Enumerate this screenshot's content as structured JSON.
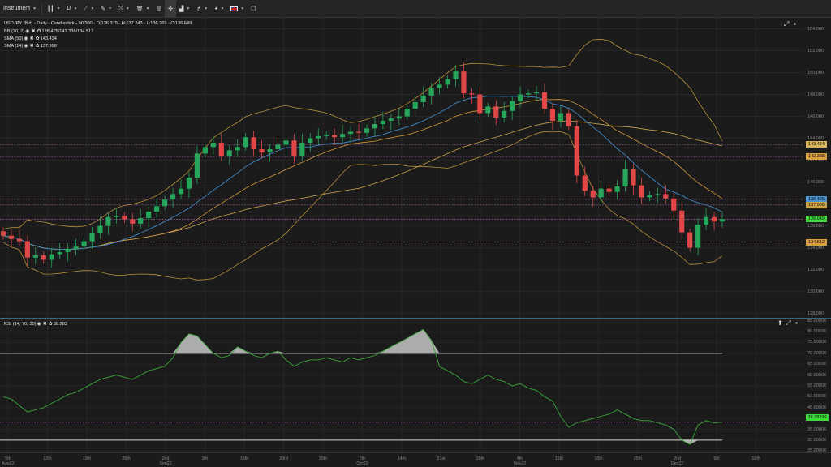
{
  "toolbar": {
    "instrument": "Instrument",
    "timeframe": "D"
  },
  "legend": {
    "title": "USDJPY (Bid) - Daily - Candlestick - 90/200 - O:136.379 - H:137.243 - L:136.269 - C:136.649",
    "bb": "BB (20, 2)",
    "bb_value": "138.425/142.338/134.512",
    "sma50": "SMA (50)",
    "sma50_value": "143.434",
    "sma14": "SMA (14)",
    "sma14_value": "137.906",
    "rsi": "RSI (14, 70, 30)",
    "rsi_value": "38.283"
  },
  "price_axis": [
    "154.000",
    "152.000",
    "150.000",
    "148.000",
    "146.000",
    "144.000",
    "142.000",
    "140.000",
    "138.000",
    "136.000",
    "134.000",
    "132.000",
    "130.000",
    "128.000"
  ],
  "price_badges": {
    "sma50": "143.434",
    "bb_upper": "142.338",
    "bb_mid": "138.425",
    "sma14": "137.906",
    "close": "136.649",
    "bb_lower": "134.512"
  },
  "rsi_axis": [
    "85.00000",
    "80.00000",
    "75.00000",
    "70.00000",
    "65.00000",
    "60.00000",
    "55.00000",
    "50.00000",
    "45.00000",
    "40.00000",
    "35.00000",
    "30.00000",
    "25.00000"
  ],
  "rsi_badge": "38.28299",
  "x_axis": [
    {
      "l1": "5th",
      "l2": "Aug22"
    },
    {
      "l1": "12th",
      "l2": ""
    },
    {
      "l1": "19th",
      "l2": ""
    },
    {
      "l1": "26th",
      "l2": ""
    },
    {
      "l1": "2nd",
      "l2": "Sep22"
    },
    {
      "l1": "9th",
      "l2": ""
    },
    {
      "l1": "16th",
      "l2": ""
    },
    {
      "l1": "23rd",
      "l2": ""
    },
    {
      "l1": "30th",
      "l2": ""
    },
    {
      "l1": "7th",
      "l2": "Oct22"
    },
    {
      "l1": "14th",
      "l2": ""
    },
    {
      "l1": "21st",
      "l2": ""
    },
    {
      "l1": "28th",
      "l2": ""
    },
    {
      "l1": "4th",
      "l2": "Nov22"
    },
    {
      "l1": "11th",
      "l2": ""
    },
    {
      "l1": "18th",
      "l2": ""
    },
    {
      "l1": "25th",
      "l2": ""
    },
    {
      "l1": "2nd",
      "l2": "Dec22"
    },
    {
      "l1": "9th",
      "l2": ""
    },
    {
      "l1": "16th",
      "l2": ""
    }
  ],
  "colors": {
    "up": "#26a65b",
    "down": "#e04848",
    "bbband": "#b8903a",
    "sma50": "#c9a24a",
    "sma14": "#3f88c5",
    "hline": "#a15fa1",
    "rsi": "#3aa83a"
  },
  "chart_data": {
    "type": "candlestick",
    "closes": [
      135.1,
      134.8,
      134.6,
      133.1,
      133.3,
      132.9,
      133.4,
      133.6,
      133.9,
      134.1,
      134.6,
      135.3,
      136.0,
      136.8,
      136.9,
      136.6,
      136.2,
      136.7,
      137.3,
      137.8,
      138.4,
      138.9,
      139.4,
      140.4,
      142.6,
      143.2,
      143.6,
      142.4,
      142.9,
      143.2,
      144.1,
      143.0,
      142.7,
      143.0,
      143.4,
      143.8,
      142.4,
      143.6,
      144.0,
      144.2,
      144.3,
      144.1,
      144.4,
      144.6,
      144.5,
      144.9,
      145.3,
      145.6,
      145.8,
      146.0,
      146.7,
      147.3,
      147.9,
      148.6,
      148.9,
      149.4,
      150.1,
      148.1,
      148.0,
      146.3,
      146.9,
      145.9,
      146.5,
      147.4,
      148.0,
      148.1,
      148.2,
      146.7,
      145.6,
      146.3,
      145.1,
      140.6,
      139.2,
      138.6,
      139.4,
      139.1,
      139.6,
      141.2,
      139.7,
      138.6,
      138.8,
      138.9,
      138.5,
      137.4,
      135.4,
      134.0,
      136.1,
      136.8,
      136.4,
      136.6
    ],
    "rsi": [
      50,
      49,
      46,
      43,
      44,
      45,
      47,
      49,
      51,
      52,
      54,
      56,
      58,
      59,
      60,
      59,
      58,
      60,
      62,
      63,
      64,
      68,
      75,
      79,
      78,
      74,
      70,
      68,
      69,
      73,
      71,
      69,
      68,
      70,
      71,
      67,
      64,
      66,
      67,
      67,
      68,
      67,
      66,
      68,
      67,
      68,
      69,
      71,
      73,
      75,
      77,
      79,
      81,
      76,
      64,
      62,
      60,
      57,
      56,
      58,
      60,
      58,
      57,
      55,
      56,
      54,
      53,
      50,
      48,
      41,
      36,
      38,
      39,
      40,
      41,
      42,
      44,
      42,
      40,
      39,
      39,
      38,
      37,
      35,
      30,
      28,
      37,
      39,
      38,
      38.3
    ],
    "bands": {
      "upper": 142.338,
      "middle": 138.425,
      "lower": 134.512
    },
    "sma50": 143.434,
    "sma14": 137.906,
    "ylim": [
      127.6,
      155.0
    ],
    "rsi_ylim": [
      24.0,
      86.0
    ],
    "rsi_levels": [
      70,
      30
    ]
  }
}
